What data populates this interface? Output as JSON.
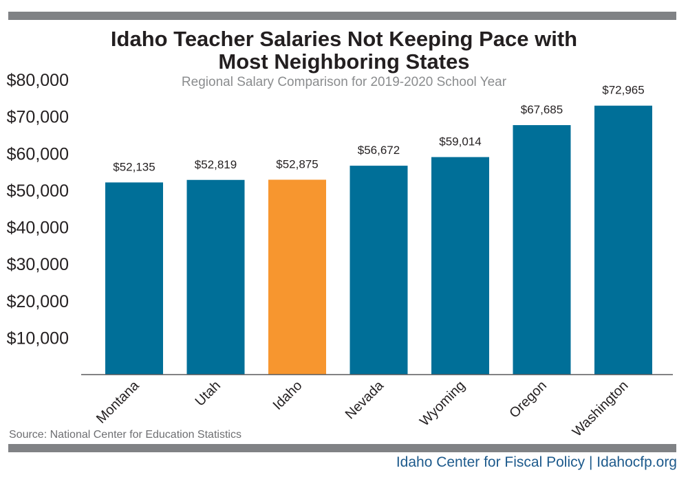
{
  "title_line1": "Idaho Teacher Salaries Not Keeping Pace with",
  "title_line2": "Most Neighboring States",
  "subtitle": "Regional Salary Comparison for 2019-2020 School Year",
  "source": "Source: National Center for Education Statistics",
  "footer": "Idaho Center for Fiscal Policy | Idahocfp.org",
  "colors": {
    "bar": "#006f98",
    "highlight": "#f7962f",
    "axis": "#58595b",
    "rule": "#808285"
  },
  "chart_data": {
    "type": "bar",
    "title": "Idaho Teacher Salaries Not Keeping Pace with Most Neighboring States",
    "subtitle": "Regional Salary Comparison for 2019-2020 School Year",
    "categories": [
      "Montana",
      "Utah",
      "Idaho",
      "Nevada",
      "Wyoming",
      "Oregon",
      "Washington"
    ],
    "values": [
      52135,
      52819,
      52875,
      56672,
      59014,
      67685,
      72965
    ],
    "value_labels": [
      "$52,135",
      "$52,819",
      "$52,875",
      "$56,672",
      "$59,014",
      "$67,685",
      "$72,965"
    ],
    "highlight": "Idaho",
    "yticks": [
      10000,
      20000,
      30000,
      40000,
      50000,
      60000,
      70000,
      80000
    ],
    "ytick_labels": [
      "$10,000",
      "$20,000",
      "$30,000",
      "$40,000",
      "$50,000",
      "$60,000",
      "$70,000",
      "$80,000"
    ],
    "ylim": [
      0,
      80000
    ],
    "xlabel": "",
    "ylabel": "",
    "grid": false
  }
}
